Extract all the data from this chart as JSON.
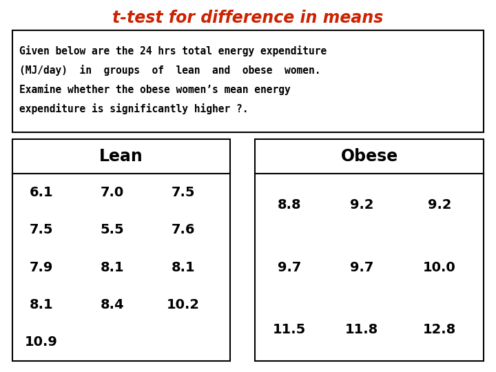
{
  "title": "t-test for difference in means",
  "title_color": "#cc2200",
  "title_fontsize": 17,
  "description_lines": [
    "Given below are the 24 hrs total energy expenditure",
    "(MJ/day)  in  groups  of  lean  and  obese  women.",
    "Examine whether the obese women’s mean energy",
    "expenditure is significantly higher ?."
  ],
  "lean_header": "Lean",
  "obese_header": "Obese",
  "lean_data": [
    [
      "6.1",
      "7.0",
      "7.5"
    ],
    [
      "7.5",
      "5.5",
      "7.6"
    ],
    [
      "7.9",
      "8.1",
      "8.1"
    ],
    [
      "8.1",
      "8.4",
      "10.2"
    ],
    [
      "10.9",
      "",
      ""
    ]
  ],
  "obese_data": [
    [
      "8.8",
      "9.2",
      "9.2"
    ],
    [
      "9.7",
      "9.7",
      "10.0"
    ],
    [
      "11.5",
      "11.8",
      "12.8"
    ]
  ],
  "background_color": "#ffffff",
  "data_fontsize": 14,
  "header_fontsize": 17,
  "desc_fontsize": 10.5
}
